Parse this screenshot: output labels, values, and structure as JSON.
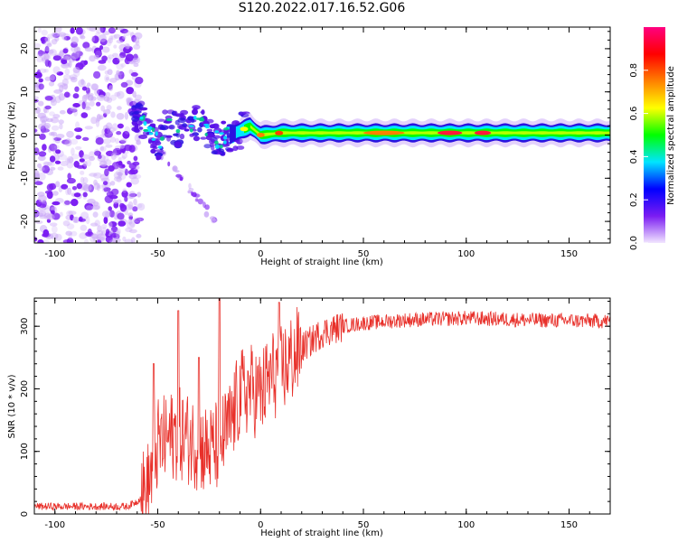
{
  "title": "S120.2022.017.16.52.G06",
  "chart_data": [
    {
      "type": "heatmap",
      "xlabel": "Height of straight line (km)",
      "ylabel": "Frequency (Hz)",
      "xlim": [
        -110,
        170
      ],
      "ylim": [
        -25,
        25
      ],
      "x_ticks": [
        -100,
        -50,
        0,
        50,
        100,
        150
      ],
      "y_ticks": [
        -20,
        -10,
        0,
        10,
        20
      ],
      "colorbar": {
        "label": "Normalized spectral amplitude",
        "range": [
          0,
          1
        ],
        "ticks": [
          0.0,
          0.2,
          0.4,
          0.6,
          0.8
        ],
        "colormap": [
          "#f2e6ff",
          "#7a1cf2",
          "#0000ff",
          "#00e5ff",
          "#00ff00",
          "#ffff00",
          "#ff8000",
          "#ff0000",
          "#ff0080"
        ]
      },
      "band_center_freq": [
        {
          "x": -60,
          "freq": 5
        },
        {
          "x": -50,
          "freq": -2
        },
        {
          "x": -45,
          "freq": 3
        },
        {
          "x": -40,
          "freq": 1
        },
        {
          "x": -30,
          "freq": 3
        },
        {
          "x": -25,
          "freq": 0
        },
        {
          "x": -20,
          "freq": -1
        },
        {
          "x": -15,
          "freq": 0
        },
        {
          "x": -10,
          "freq": 1
        },
        {
          "x": -5,
          "freq": 2
        },
        {
          "x": 0,
          "freq": 0
        },
        {
          "x": 10,
          "freq": 0.5
        },
        {
          "x": 20,
          "freq": 0.5
        },
        {
          "x": 170,
          "freq": 0.5
        }
      ]
    },
    {
      "type": "line",
      "xlabel": "Height of straight line (km)",
      "ylabel": "SNR (10 * v/v)",
      "xlim": [
        -110,
        170
      ],
      "ylim": [
        0,
        345
      ],
      "x_ticks": [
        -100,
        -50,
        0,
        50,
        100,
        150
      ],
      "y_ticks": [
        0,
        100,
        200,
        300
      ],
      "color": "#e8302a",
      "trend": [
        {
          "x": -110,
          "snr": 12
        },
        {
          "x": -65,
          "snr": 12
        },
        {
          "x": -60,
          "snr": 20
        },
        {
          "x": -55,
          "snr": 40
        },
        {
          "x": -50,
          "snr": 110
        },
        {
          "x": -45,
          "snr": 120
        },
        {
          "x": -40,
          "snr": 130
        },
        {
          "x": -35,
          "snr": 120
        },
        {
          "x": -30,
          "snr": 110
        },
        {
          "x": -25,
          "snr": 100
        },
        {
          "x": -20,
          "snr": 110
        },
        {
          "x": -15,
          "snr": 140
        },
        {
          "x": -10,
          "snr": 190
        },
        {
          "x": -5,
          "snr": 200
        },
        {
          "x": 0,
          "snr": 190
        },
        {
          "x": 5,
          "snr": 220
        },
        {
          "x": 10,
          "snr": 230
        },
        {
          "x": 20,
          "snr": 265
        },
        {
          "x": 30,
          "snr": 290
        },
        {
          "x": 40,
          "snr": 300
        },
        {
          "x": 50,
          "snr": 305
        },
        {
          "x": 70,
          "snr": 310
        },
        {
          "x": 100,
          "snr": 313
        },
        {
          "x": 130,
          "snr": 310
        },
        {
          "x": 170,
          "snr": 308
        }
      ],
      "spikes": [
        {
          "x": -52,
          "snr": 240
        },
        {
          "x": -40,
          "snr": 325
        },
        {
          "x": -30,
          "snr": 250
        },
        {
          "x": -20,
          "snr": 345
        },
        {
          "x": 9,
          "snr": 338
        }
      ]
    }
  ]
}
